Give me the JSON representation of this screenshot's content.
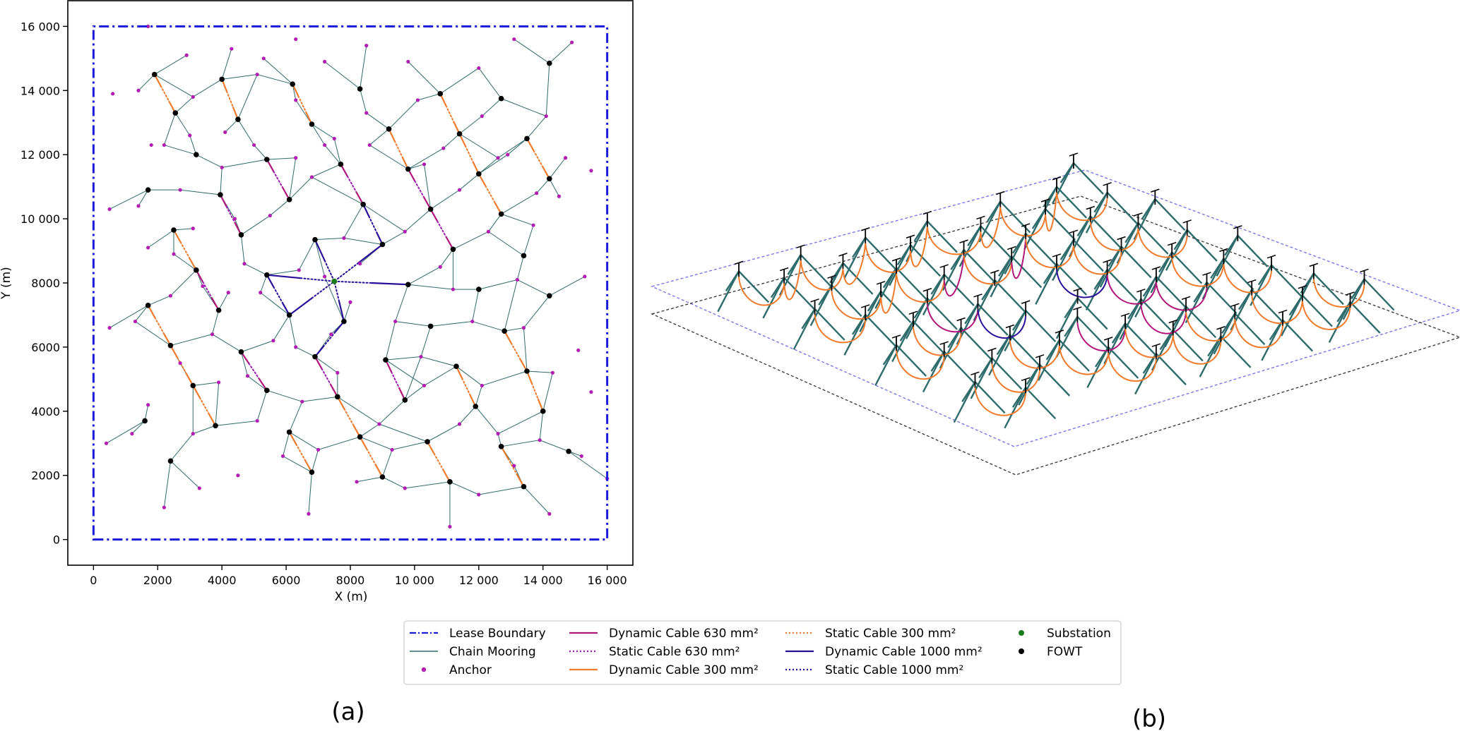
{
  "figure": {
    "panel_a_label": "(a)",
    "panel_b_label": "(b)"
  },
  "legend": {
    "entries": [
      {
        "key": "lease_boundary",
        "label": "Lease Boundary",
        "color": "#1a1adb",
        "style": "dashdot",
        "marker": false
      },
      {
        "key": "chain_mooring",
        "label": "Chain Mooring",
        "color": "#2e6b6b",
        "style": "solid-thin",
        "marker": false
      },
      {
        "key": "anchor",
        "label": "Anchor",
        "color": "#b21cb2",
        "style": "none",
        "marker": true
      },
      {
        "key": "dyn_630",
        "label": "Dynamic Cable 630 mm²",
        "color": "#b2157a",
        "style": "solid",
        "marker": false
      },
      {
        "key": "sta_630",
        "label": "Static Cable 630 mm²",
        "color": "#9a1db0",
        "style": "dotted",
        "marker": false
      },
      {
        "key": "dyn_300",
        "label": "Dynamic Cable 300 mm²",
        "color": "#f07a2a",
        "style": "solid",
        "marker": false
      },
      {
        "key": "sta_300",
        "label": "Static Cable 300 mm²",
        "color": "#f07a2a",
        "style": "dotted",
        "marker": false
      },
      {
        "key": "dyn_1000",
        "label": "Dynamic Cable 1000 mm²",
        "color": "#2a0f9a",
        "style": "solid",
        "marker": false
      },
      {
        "key": "sta_1000",
        "label": "Static Cable 1000 mm²",
        "color": "#2a0f9a",
        "style": "dotted",
        "marker": false
      },
      {
        "key": "substation",
        "label": "Substation",
        "color": "#1a7a1a",
        "style": "none",
        "marker": true
      },
      {
        "key": "fowt",
        "label": "FOWT",
        "color": "#000000",
        "style": "none",
        "marker": true
      }
    ]
  },
  "chart_data": [
    {
      "type": "scatter",
      "panel": "(a)",
      "title": "",
      "xlabel": "X (m)",
      "ylabel": "Y (m)",
      "xlim": [
        -800,
        16800
      ],
      "ylim": [
        -800,
        16800
      ],
      "xticks": [
        0,
        2000,
        4000,
        6000,
        8000,
        10000,
        12000,
        14000,
        16000
      ],
      "xtick_labels": [
        "0",
        "2000",
        "4000",
        "6000",
        "8000",
        "10 000",
        "12 000",
        "14 000",
        "16 000"
      ],
      "yticks": [
        0,
        2000,
        4000,
        6000,
        8000,
        10000,
        12000,
        14000,
        16000
      ],
      "ytick_labels": [
        "0",
        "2000",
        "4000",
        "6000",
        "8000",
        "10 000",
        "12 000",
        "14 000",
        "16 000"
      ],
      "lease_boundary": [
        [
          0,
          0
        ],
        [
          16000,
          0
        ],
        [
          16000,
          16000
        ],
        [
          0,
          16000
        ]
      ],
      "substation": [
        7500,
        8050
      ],
      "fowt": [
        [
          1900,
          14500
        ],
        [
          2550,
          13300
        ],
        [
          4000,
          14350
        ],
        [
          4500,
          13100
        ],
        [
          6200,
          14200
        ],
        [
          6800,
          12950
        ],
        [
          8300,
          14050
        ],
        [
          9200,
          12800
        ],
        [
          10800,
          13900
        ],
        [
          11400,
          12650
        ],
        [
          12700,
          13750
        ],
        [
          13500,
          12500
        ],
        [
          14200,
          14850
        ],
        [
          1700,
          10900
        ],
        [
          2500,
          9650
        ],
        [
          3200,
          12000
        ],
        [
          3950,
          10750
        ],
        [
          5400,
          11850
        ],
        [
          6100,
          10600
        ],
        [
          7700,
          11700
        ],
        [
          8400,
          10450
        ],
        [
          9800,
          11550
        ],
        [
          10500,
          10300
        ],
        [
          11200,
          9050
        ],
        [
          12000,
          11400
        ],
        [
          12700,
          10150
        ],
        [
          13400,
          8850
        ],
        [
          14200,
          11250
        ],
        [
          1700,
          7300
        ],
        [
          2400,
          6050
        ],
        [
          3200,
          8400
        ],
        [
          3900,
          7150
        ],
        [
          4600,
          9500
        ],
        [
          5400,
          8250
        ],
        [
          6100,
          7000
        ],
        [
          6900,
          9350
        ],
        [
          7800,
          6800
        ],
        [
          9000,
          9200
        ],
        [
          9800,
          7950
        ],
        [
          10500,
          6650
        ],
        [
          11300,
          5400
        ],
        [
          12000,
          7800
        ],
        [
          12800,
          6500
        ],
        [
          13500,
          5250
        ],
        [
          14200,
          7600
        ],
        [
          1600,
          3700
        ],
        [
          2400,
          2450
        ],
        [
          3100,
          4800
        ],
        [
          3800,
          3550
        ],
        [
          4600,
          5850
        ],
        [
          5400,
          4650
        ],
        [
          6100,
          3350
        ],
        [
          6800,
          2100
        ],
        [
          6900,
          5700
        ],
        [
          7600,
          4450
        ],
        [
          8300,
          3200
        ],
        [
          9000,
          1950
        ],
        [
          9100,
          5600
        ],
        [
          9700,
          4350
        ],
        [
          10400,
          3050
        ],
        [
          11100,
          1800
        ],
        [
          11900,
          4150
        ],
        [
          12700,
          2900
        ],
        [
          13400,
          1650
        ],
        [
          14000,
          4000
        ],
        [
          14800,
          2750
        ]
      ],
      "anchors_approx": [
        [
          1700,
          16000
        ],
        [
          2900,
          15100
        ],
        [
          4300,
          15300
        ],
        [
          5300,
          15000
        ],
        [
          6300,
          15600
        ],
        [
          7200,
          14900
        ],
        [
          8500,
          15400
        ],
        [
          9800,
          14900
        ],
        [
          12000,
          14700
        ],
        [
          13100,
          15600
        ],
        [
          14900,
          15500
        ],
        [
          600,
          13900
        ],
        [
          1400,
          14000
        ],
        [
          2200,
          12300
        ],
        [
          3100,
          13800
        ],
        [
          4100,
          12700
        ],
        [
          5100,
          14500
        ],
        [
          6300,
          13700
        ],
        [
          7200,
          12300
        ],
        [
          8500,
          13300
        ],
        [
          10100,
          13700
        ],
        [
          10900,
          12200
        ],
        [
          12100,
          13200
        ],
        [
          12900,
          12000
        ],
        [
          14100,
          13200
        ],
        [
          14700,
          11900
        ],
        [
          1800,
          12300
        ],
        [
          500,
          10300
        ],
        [
          1400,
          10400
        ],
        [
          2700,
          10900
        ],
        [
          3000,
          12600
        ],
        [
          4000,
          11600
        ],
        [
          4400,
          10000
        ],
        [
          5000,
          12300
        ],
        [
          6300,
          11900
        ],
        [
          6800,
          11300
        ],
        [
          7500,
          12500
        ],
        [
          8600,
          12300
        ],
        [
          10300,
          11700
        ],
        [
          11400,
          10900
        ],
        [
          12600,
          11900
        ],
        [
          13800,
          10800
        ],
        [
          14500,
          10700
        ],
        [
          15500,
          11500
        ],
        [
          1700,
          9100
        ],
        [
          2500,
          8900
        ],
        [
          3100,
          9700
        ],
        [
          3400,
          7900
        ],
        [
          4700,
          8600
        ],
        [
          5200,
          7700
        ],
        [
          5500,
          10100
        ],
        [
          6400,
          8400
        ],
        [
          7200,
          8200
        ],
        [
          7800,
          9400
        ],
        [
          8300,
          8600
        ],
        [
          9700,
          9600
        ],
        [
          10800,
          8500
        ],
        [
          11200,
          7800
        ],
        [
          12300,
          9600
        ],
        [
          13200,
          8100
        ],
        [
          13700,
          9800
        ],
        [
          15300,
          8200
        ],
        [
          500,
          6600
        ],
        [
          1300,
          6800
        ],
        [
          2400,
          7600
        ],
        [
          2700,
          5500
        ],
        [
          3700,
          6400
        ],
        [
          4200,
          7700
        ],
        [
          4800,
          5100
        ],
        [
          5600,
          6200
        ],
        [
          6300,
          6000
        ],
        [
          7400,
          6400
        ],
        [
          8000,
          7400
        ],
        [
          9400,
          6800
        ],
        [
          10200,
          5700
        ],
        [
          11800,
          6800
        ],
        [
          12100,
          4800
        ],
        [
          13400,
          6600
        ],
        [
          14300,
          5200
        ],
        [
          15100,
          5900
        ],
        [
          400,
          3000
        ],
        [
          1200,
          3300
        ],
        [
          1700,
          4200
        ],
        [
          2200,
          1000
        ],
        [
          3100,
          3300
        ],
        [
          3300,
          1600
        ],
        [
          3900,
          4900
        ],
        [
          4500,
          2000
        ],
        [
          5100,
          3700
        ],
        [
          5900,
          2600
        ],
        [
          6500,
          4300
        ],
        [
          6700,
          800
        ],
        [
          7000,
          2800
        ],
        [
          7600,
          5200
        ],
        [
          8200,
          1800
        ],
        [
          8900,
          3600
        ],
        [
          9300,
          2800
        ],
        [
          9700,
          1600
        ],
        [
          10300,
          4800
        ],
        [
          11100,
          400
        ],
        [
          11400,
          3600
        ],
        [
          12000,
          1400
        ],
        [
          12600,
          3300
        ],
        [
          13100,
          2300
        ],
        [
          13900,
          3100
        ],
        [
          14200,
          800
        ],
        [
          15200,
          2600
        ],
        [
          15500,
          4600
        ],
        [
          16000,
          1900
        ]
      ]
    },
    {
      "type": "scatter",
      "panel": "(b)",
      "title": "",
      "view": "isometric 3D render of the same farm",
      "lease_boundary": "blue dashed outline",
      "seabed": "black dashed outline"
    }
  ]
}
